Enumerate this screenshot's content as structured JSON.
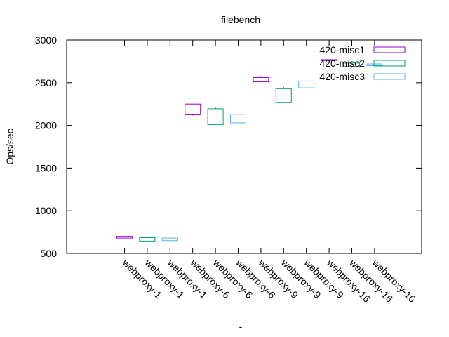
{
  "chart_data": {
    "type": "candlestick",
    "title": "filebench",
    "xlabel": "-",
    "ylabel": "Ops/sec",
    "ylim": [
      500,
      3000
    ],
    "yticks": [
      500,
      1000,
      1500,
      2000,
      2500,
      3000
    ],
    "grid": false,
    "legend": "top-right",
    "categories": [
      "webproxy-1",
      "webproxy-1",
      "webproxy-1",
      "webproxy-6",
      "webproxy-6",
      "webproxy-6",
      "webproxy-9",
      "webproxy-9",
      "webproxy-9",
      "webproxy-16",
      "webproxy-16",
      "webproxy-16"
    ],
    "series": [
      {
        "name": "420-misc1",
        "color": "#9400d3",
        "points": [
          {
            "category_index": 0,
            "low": 680,
            "q1": 680,
            "q3": 700,
            "high": 700
          },
          {
            "category_index": 3,
            "low": 2115,
            "q1": 2125,
            "q3": 2250,
            "high": 2250
          },
          {
            "category_index": 6,
            "low": 2510,
            "q1": 2510,
            "q3": 2560,
            "high": 2580
          },
          {
            "category_index": 9,
            "low": 2755,
            "q1": 2760,
            "q3": 2770,
            "high": 2775
          }
        ]
      },
      {
        "name": "420-misc2",
        "color": "#009e73",
        "points": [
          {
            "category_index": 1,
            "low": 645,
            "q1": 645,
            "q3": 685,
            "high": 685
          },
          {
            "category_index": 4,
            "low": 2010,
            "q1": 2010,
            "q3": 2195,
            "high": 2210
          },
          {
            "category_index": 7,
            "low": 2270,
            "q1": 2270,
            "q3": 2430,
            "high": 2450
          },
          {
            "category_index": 10,
            "low": 2680,
            "q1": 2690,
            "q3": 2730,
            "high": 2730
          }
        ]
      },
      {
        "name": "420-misc3",
        "color": "#56b4e9",
        "points": [
          {
            "category_index": 2,
            "low": 650,
            "q1": 650,
            "q3": 680,
            "high": 680
          },
          {
            "category_index": 5,
            "low": 2030,
            "q1": 2030,
            "q3": 2130,
            "high": 2130
          },
          {
            "category_index": 8,
            "low": 2440,
            "q1": 2440,
            "q3": 2520,
            "high": 2520
          },
          {
            "category_index": 11,
            "low": 2700,
            "q1": 2700,
            "q3": 2720,
            "high": 2720
          }
        ]
      }
    ]
  }
}
